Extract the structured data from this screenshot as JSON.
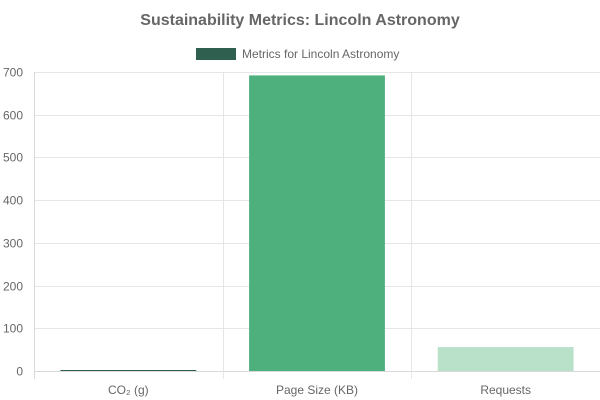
{
  "chart_data": {
    "type": "bar",
    "title": "Sustainability Metrics: Lincoln Astronomy",
    "legend": {
      "label": "Metrics for Lincoln Astronomy",
      "color": "#2f5f4f",
      "position": "top"
    },
    "categories": [
      "CO₂ (g)",
      "Page Size (KB)",
      "Requests"
    ],
    "values": [
      0.8,
      692,
      56
    ],
    "bar_colors": [
      "#2f5f4f",
      "#4eb07d",
      "#b9e0c9"
    ],
    "xlabel": "",
    "ylabel": "",
    "ylim": [
      0,
      700
    ],
    "yticks": [
      0,
      100,
      200,
      300,
      400,
      500,
      600,
      700
    ],
    "grid": true
  }
}
